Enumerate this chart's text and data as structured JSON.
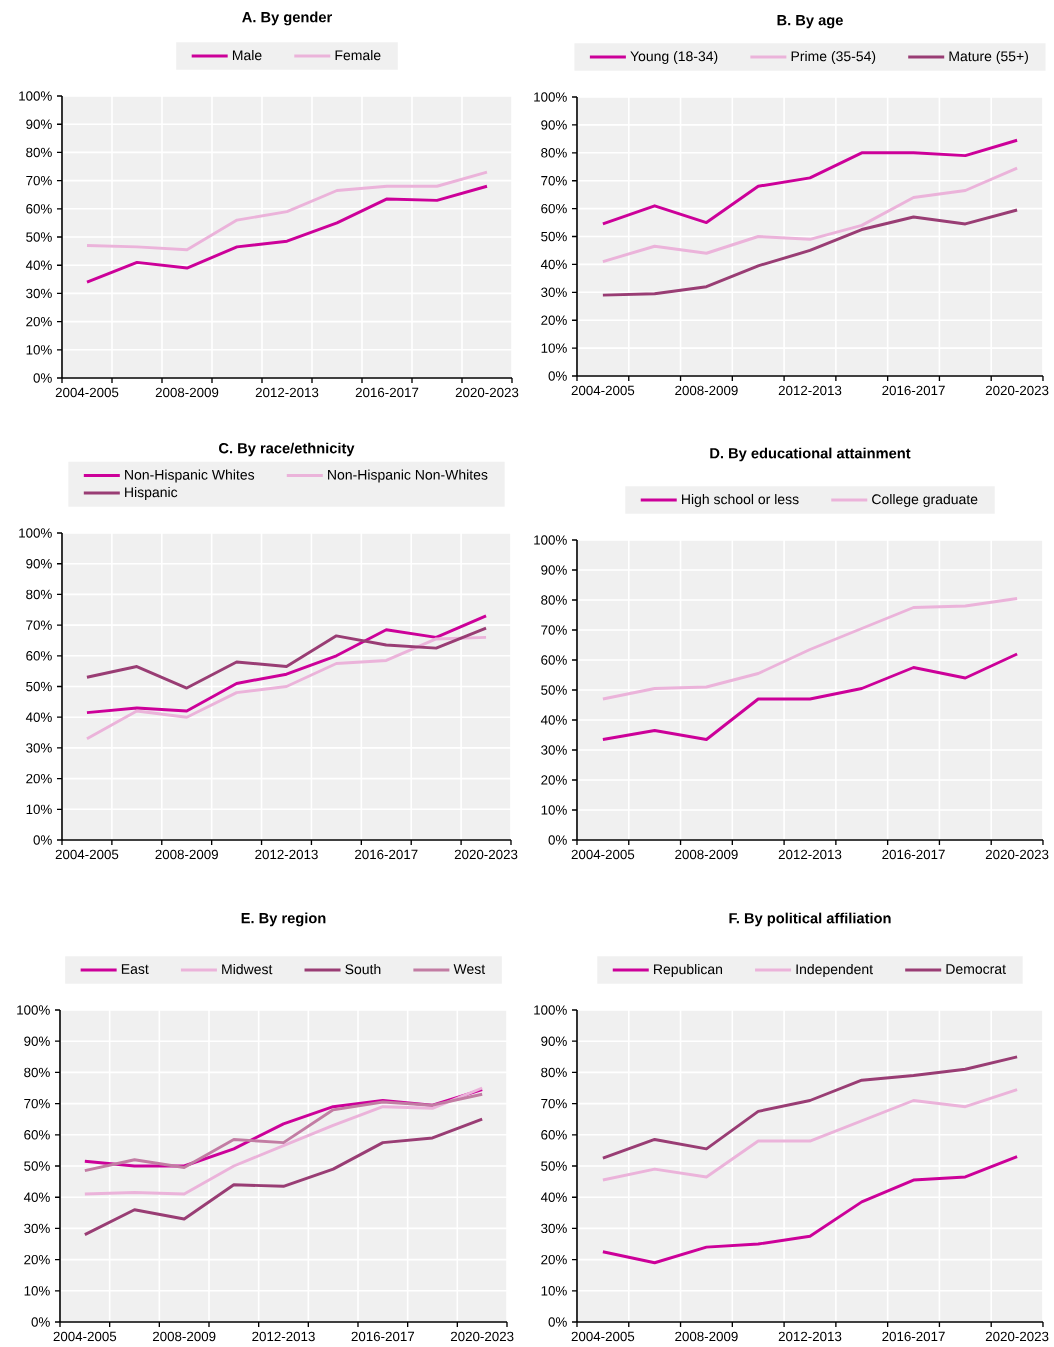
{
  "chart_data": [
    {
      "type": "line",
      "title": "A. By gender",
      "categories": [
        "2004-2005",
        null,
        "2008-2009",
        null,
        "2012-2013",
        null,
        "2016-2017",
        null,
        "2020-2023"
      ],
      "ylim": [
        0,
        100
      ],
      "yticks": [
        {
          "value": 0,
          "label": "0%"
        },
        {
          "value": 10,
          "label": "10%"
        },
        {
          "value": 20,
          "label": "20%"
        },
        {
          "value": 30,
          "label": "30%"
        },
        {
          "value": 40,
          "label": "40%"
        },
        {
          "value": 50,
          "label": "50%"
        },
        {
          "value": 60,
          "label": "60%"
        },
        {
          "value": 70,
          "label": "70%"
        },
        {
          "value": 80,
          "label": "80%"
        },
        {
          "value": 90,
          "label": "90%"
        },
        {
          "value": 100,
          "label": "100%"
        }
      ],
      "grid": true,
      "legend": "top",
      "series": [
        {
          "name": "Male",
          "color": "#cc0099",
          "values": [
            34,
            41,
            39,
            46.5,
            48.5,
            55,
            63.5,
            63,
            68
          ]
        },
        {
          "name": "Female",
          "color": "#ebb3da",
          "values": [
            47,
            46.5,
            45.5,
            56,
            59,
            66.5,
            68,
            68,
            73
          ]
        }
      ]
    },
    {
      "type": "line",
      "title": "B. By age",
      "categories": [
        "2004-2005",
        null,
        "2008-2009",
        null,
        "2012-2013",
        null,
        "2016-2017",
        null,
        "2020-2023"
      ],
      "ylim": [
        0,
        100
      ],
      "yticks": [
        {
          "value": 0,
          "label": "0%"
        },
        {
          "value": 10,
          "label": "10%"
        },
        {
          "value": 20,
          "label": "20%"
        },
        {
          "value": 30,
          "label": "30%"
        },
        {
          "value": 40,
          "label": "40%"
        },
        {
          "value": 50,
          "label": "50%"
        },
        {
          "value": 60,
          "label": "60%"
        },
        {
          "value": 70,
          "label": "70%"
        },
        {
          "value": 80,
          "label": "80%"
        },
        {
          "value": 90,
          "label": "90%"
        },
        {
          "value": 100,
          "label": "100%"
        }
      ],
      "grid": true,
      "legend": "top",
      "series": [
        {
          "name": "Young (18-34)",
          "color": "#cc0099",
          "values": [
            54.5,
            61,
            55,
            68,
            71,
            80,
            80,
            79,
            84.5
          ]
        },
        {
          "name": "Prime (35-54)",
          "color": "#ebb3da",
          "values": [
            41,
            46.5,
            44,
            50,
            49,
            54,
            64,
            66.5,
            74.5
          ]
        },
        {
          "name": "Mature (55+)",
          "color": "#993d74",
          "values": [
            29,
            29.5,
            32,
            39.5,
            45,
            52.5,
            57,
            54.5,
            59.5
          ]
        }
      ]
    },
    {
      "type": "line",
      "title": "C. By race/ethnicity",
      "categories": [
        "2004-2005",
        null,
        "2008-2009",
        null,
        "2012-2013",
        null,
        "2016-2017",
        null,
        "2020-2023"
      ],
      "ylim": [
        0,
        100
      ],
      "yticks": [
        {
          "value": 0,
          "label": "0%"
        },
        {
          "value": 10,
          "label": "10%"
        },
        {
          "value": 20,
          "label": "20%"
        },
        {
          "value": 30,
          "label": "30%"
        },
        {
          "value": 40,
          "label": "40%"
        },
        {
          "value": 50,
          "label": "50%"
        },
        {
          "value": 60,
          "label": "60%"
        },
        {
          "value": 70,
          "label": "70%"
        },
        {
          "value": 80,
          "label": "80%"
        },
        {
          "value": 90,
          "label": "90%"
        },
        {
          "value": 100,
          "label": "100%"
        }
      ],
      "grid": true,
      "legend": "top",
      "series": [
        {
          "name": "Non-Hispanic Whites",
          "color": "#cc0099",
          "values": [
            41.5,
            43,
            42,
            51,
            54,
            60,
            68.5,
            66,
            73
          ]
        },
        {
          "name": "Non-Hispanic Non-Whites",
          "color": "#ebb3da",
          "values": [
            33,
            42,
            40,
            48,
            50,
            57.5,
            58.5,
            65.5,
            66
          ]
        },
        {
          "name": "Hispanic",
          "color": "#993d74",
          "values": [
            53,
            56.5,
            49.5,
            58,
            56.5,
            66.5,
            63.5,
            62.5,
            69
          ]
        }
      ]
    },
    {
      "type": "line",
      "title": "D. By educational attainment",
      "categories": [
        "2004-2005",
        null,
        "2008-2009",
        null,
        "2012-2013",
        null,
        "2016-2017",
        null,
        "2020-2023"
      ],
      "ylim": [
        0,
        100
      ],
      "yticks": [
        {
          "value": 0,
          "label": "0%"
        },
        {
          "value": 10,
          "label": "10%"
        },
        {
          "value": 20,
          "label": "20%"
        },
        {
          "value": 30,
          "label": "30%"
        },
        {
          "value": 40,
          "label": "40%"
        },
        {
          "value": 50,
          "label": "50%"
        },
        {
          "value": 60,
          "label": "60%"
        },
        {
          "value": 70,
          "label": "70%"
        },
        {
          "value": 80,
          "label": "80%"
        },
        {
          "value": 90,
          "label": "90%"
        },
        {
          "value": 100,
          "label": "100%"
        }
      ],
      "grid": true,
      "legend": "top",
      "series": [
        {
          "name": "High school or less",
          "color": "#cc0099",
          "values": [
            33.5,
            36.5,
            33.5,
            47,
            47,
            50.5,
            57.5,
            54,
            62
          ]
        },
        {
          "name": "College graduate",
          "color": "#ebb3da",
          "values": [
            47,
            50.5,
            51,
            55.5,
            63.5,
            70.5,
            77.5,
            78,
            80.5
          ]
        }
      ]
    },
    {
      "type": "line",
      "title": "E. By region",
      "categories": [
        "2004-2005",
        null,
        "2008-2009",
        null,
        "2012-2013",
        null,
        "2016-2017",
        null,
        "2020-2023"
      ],
      "ylim": [
        0,
        100
      ],
      "yticks": [
        {
          "value": 0,
          "label": "0%"
        },
        {
          "value": 10,
          "label": "10%"
        },
        {
          "value": 20,
          "label": "20%"
        },
        {
          "value": 30,
          "label": "30%"
        },
        {
          "value": 40,
          "label": "40%"
        },
        {
          "value": 50,
          "label": "50%"
        },
        {
          "value": 60,
          "label": "60%"
        },
        {
          "value": 70,
          "label": "70%"
        },
        {
          "value": 80,
          "label": "80%"
        },
        {
          "value": 90,
          "label": "90%"
        },
        {
          "value": 100,
          "label": "100%"
        }
      ],
      "grid": true,
      "legend": "top",
      "series": [
        {
          "name": "East",
          "color": "#cc0099",
          "values": [
            51.5,
            50,
            50,
            55.5,
            63.5,
            69,
            71,
            69.5,
            74.5
          ]
        },
        {
          "name": "Midwest",
          "color": "#ebb3da",
          "values": [
            41,
            41.5,
            41,
            50,
            56.5,
            63,
            69,
            68.5,
            75
          ]
        },
        {
          "name": "South",
          "color": "#993d74",
          "values": [
            28,
            36,
            33,
            44,
            43.5,
            49,
            57.5,
            59,
            65
          ]
        },
        {
          "name": "West",
          "color": "#c27ca3",
          "values": [
            48.5,
            52,
            49.5,
            58.5,
            57.5,
            68,
            70.5,
            69.5,
            73
          ]
        }
      ]
    },
    {
      "type": "line",
      "title": "F. By political affiliation",
      "categories": [
        "2004-2005",
        null,
        "2008-2009",
        null,
        "2012-2013",
        null,
        "2016-2017",
        null,
        "2020-2023"
      ],
      "ylim": [
        0,
        100
      ],
      "yticks": [
        {
          "value": 0,
          "label": "0%"
        },
        {
          "value": 10,
          "label": "10%"
        },
        {
          "value": 20,
          "label": "20%"
        },
        {
          "value": 30,
          "label": "30%"
        },
        {
          "value": 40,
          "label": "40%"
        },
        {
          "value": 50,
          "label": "50%"
        },
        {
          "value": 60,
          "label": "60%"
        },
        {
          "value": 70,
          "label": "70%"
        },
        {
          "value": 80,
          "label": "80%"
        },
        {
          "value": 90,
          "label": "90%"
        },
        {
          "value": 100,
          "label": "100%"
        }
      ],
      "grid": true,
      "legend": "top",
      "series": [
        {
          "name": "Republican",
          "color": "#cc0099",
          "values": [
            22.5,
            19,
            24,
            25,
            27.5,
            38.5,
            45.5,
            46.5,
            53
          ]
        },
        {
          "name": "Independent",
          "color": "#ebb3da",
          "values": [
            45.5,
            49,
            46.5,
            58,
            58,
            64.5,
            71,
            69,
            74.5
          ]
        },
        {
          "name": "Democrat",
          "color": "#993d74",
          "values": [
            52.5,
            58.5,
            55.5,
            67.5,
            71,
            77.5,
            79,
            81,
            85
          ]
        }
      ]
    }
  ]
}
